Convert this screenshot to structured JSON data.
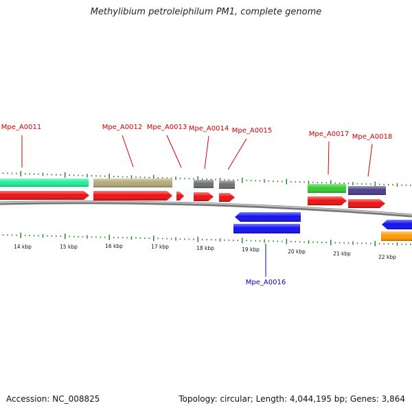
{
  "title": "Methylibium petroleiphilum PM1, complete genome",
  "footer": {
    "accession": "Accession: NC_008825",
    "summary": "Topology: circular; Length: 4,044,195 bp; Genes: 3,864"
  },
  "ruler_labels": [
    "14 kbp",
    "15 kbp",
    "16 kbp",
    "17 kbp",
    "18 kbp",
    "19 kbp",
    "20 kbp",
    "21 kbp",
    "22 kbp"
  ],
  "gene_labels_top": [
    "Mpe_A0011",
    "Mpe_A0012",
    "Mpe_A0013",
    "Mpe_A0014",
    "Mpe_A0015",
    "Mpe_A0017",
    "Mpe_A0018"
  ],
  "gene_labels_bottom": [
    "Mpe_A0016"
  ],
  "colors": {
    "forward_label": "#cc0000",
    "reverse_label": "#0000bb",
    "tick": "#2a8a2a",
    "backbone": "#888888",
    "cds": "#ee1111",
    "reverse_cds": "#1111ee",
    "a0011_gene": "#22ee99",
    "a0012_gene": "#b5a878",
    "a0014_gene": "#6f6f6f",
    "a0015_gene": "#6f6f6f",
    "a0017_gene": "#33cc33",
    "a0018_gene": "#4a3d8a",
    "a0016_gene": "#1111ee",
    "next_reverse_gene": "#ff9900"
  }
}
